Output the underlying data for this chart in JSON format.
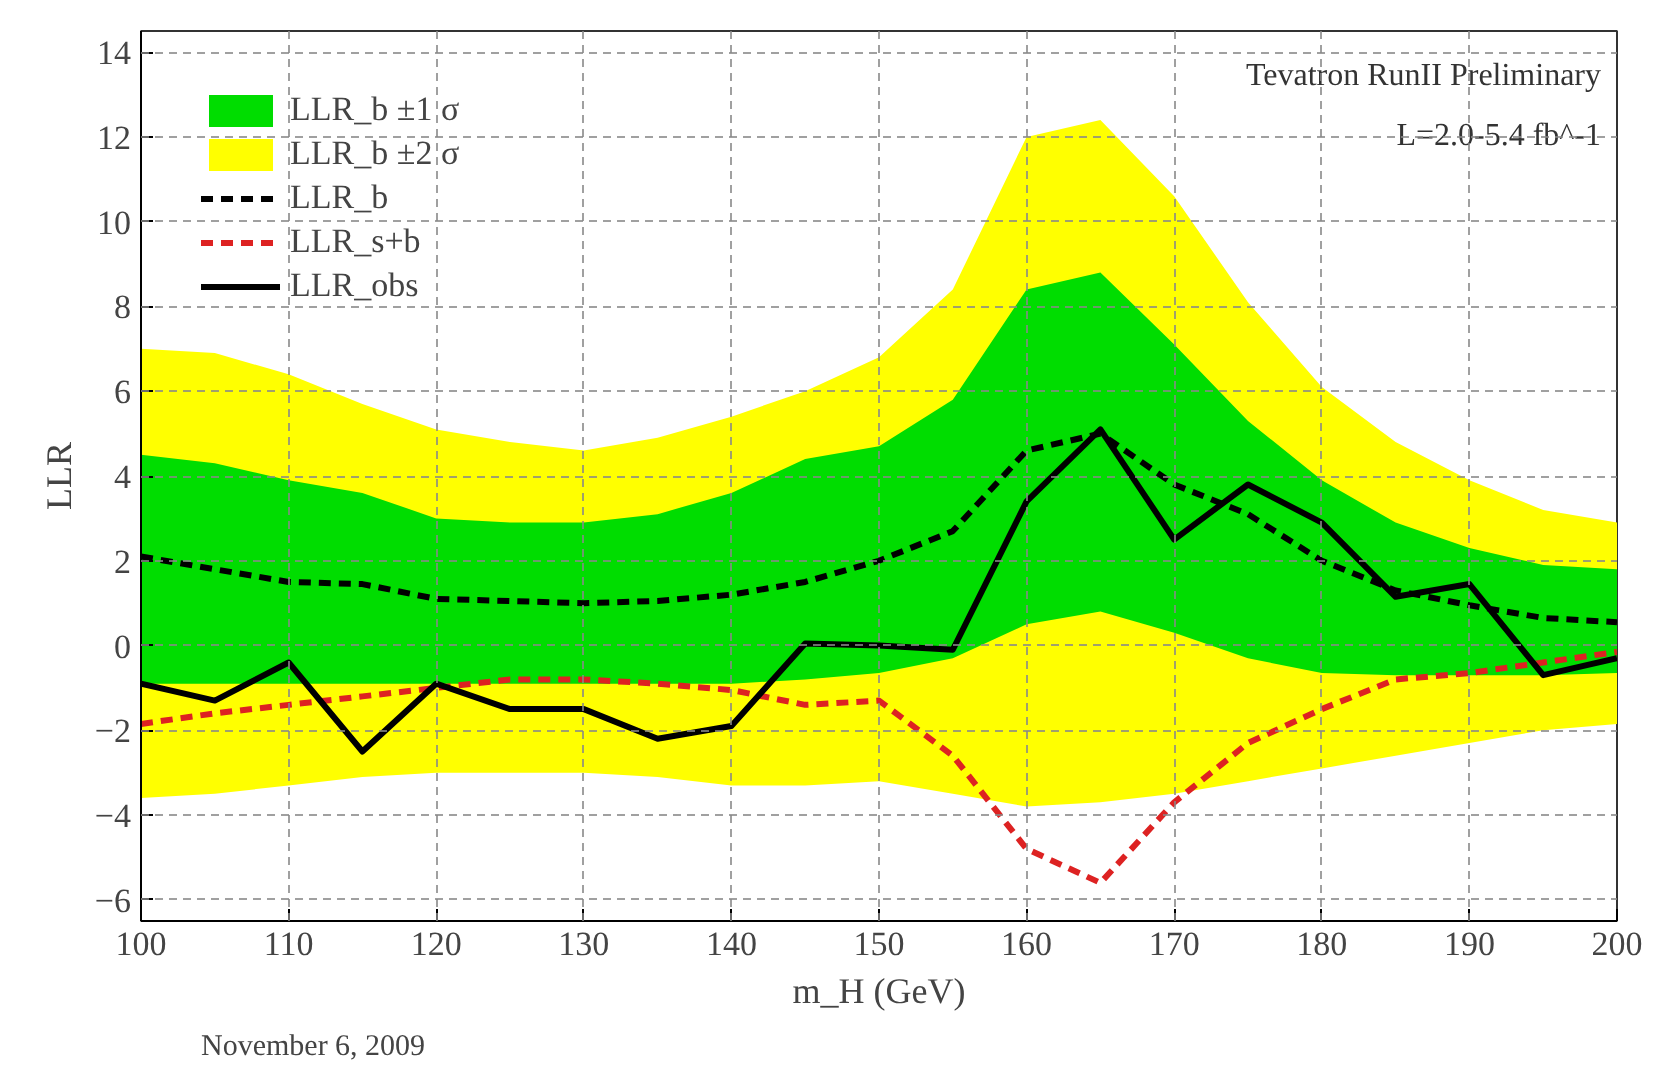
{
  "chart_data": {
    "type": "line",
    "xlabel": "m_H (GeV)",
    "ylabel": "LLR",
    "x": [
      100,
      105,
      110,
      115,
      120,
      125,
      130,
      135,
      140,
      145,
      150,
      155,
      160,
      165,
      170,
      175,
      180,
      185,
      190,
      195,
      200
    ],
    "series": [
      {
        "name": "LLR_b ±2 σ",
        "type": "area",
        "color": "#ffff00",
        "values": [
          null,
          null,
          null,
          null,
          null,
          null,
          null,
          null,
          null,
          null,
          null,
          null,
          null,
          null,
          null,
          null,
          null,
          null,
          null,
          null,
          null
        ],
        "lower": [
          -3.6,
          -3.5,
          -3.3,
          -3.1,
          -3.0,
          -3.0,
          -3.0,
          -3.1,
          -3.3,
          -3.3,
          -3.2,
          -3.5,
          -3.8,
          -3.7,
          -3.5,
          -3.2,
          -2.9,
          -2.6,
          -2.3,
          -2.0,
          -1.85
        ],
        "upper": [
          7.0,
          6.9,
          6.4,
          5.7,
          5.1,
          4.8,
          4.6,
          4.9,
          5.4,
          6.0,
          6.8,
          8.4,
          12.0,
          12.4,
          10.6,
          8.1,
          6.1,
          4.8,
          3.9,
          3.2,
          2.9
        ]
      },
      {
        "name": "LLR_b ±1 σ",
        "type": "area",
        "color": "#00dd00",
        "values": [
          null,
          null,
          null,
          null,
          null,
          null,
          null,
          null,
          null,
          null,
          null,
          null,
          null,
          null,
          null,
          null,
          null,
          null,
          null,
          null,
          null
        ],
        "lower": [
          -0.9,
          -0.9,
          -0.9,
          -0.9,
          -0.9,
          -0.9,
          -0.9,
          -0.9,
          -0.9,
          -0.8,
          -0.65,
          -0.3,
          0.5,
          0.8,
          0.3,
          -0.3,
          -0.65,
          -0.7,
          -0.7,
          -0.7,
          -0.65
        ],
        "upper": [
          4.5,
          4.3,
          3.9,
          3.6,
          3.0,
          2.9,
          2.9,
          3.1,
          3.6,
          4.4,
          4.7,
          5.8,
          8.4,
          8.8,
          7.1,
          5.3,
          3.9,
          2.9,
          2.3,
          1.9,
          1.8
        ]
      },
      {
        "name": "LLR_b",
        "color": "#000000",
        "line_style": "dashed",
        "values": [
          2.1,
          1.8,
          1.5,
          1.45,
          1.1,
          1.05,
          1.0,
          1.05,
          1.2,
          1.5,
          2.0,
          2.7,
          4.6,
          5.0,
          3.8,
          3.1,
          2.0,
          1.3,
          0.95,
          0.65,
          0.55
        ]
      },
      {
        "name": "LLR_s+b",
        "color": "#dd2222",
        "line_style": "dashed",
        "values": [
          -1.85,
          -1.6,
          -1.4,
          -1.2,
          -1.0,
          -0.8,
          -0.8,
          -0.9,
          -1.05,
          -1.4,
          -1.3,
          -2.6,
          -4.8,
          -5.6,
          -3.7,
          -2.3,
          -1.5,
          -0.8,
          -0.65,
          -0.4,
          -0.15
        ]
      },
      {
        "name": "LLR_obs",
        "color": "#000000",
        "line_style": "solid",
        "values": [
          -0.9,
          -1.3,
          -0.4,
          -2.5,
          -0.9,
          -1.5,
          -1.5,
          -2.2,
          -1.9,
          0.05,
          0.0,
          -0.1,
          3.4,
          5.1,
          2.5,
          3.8,
          2.9,
          1.15,
          1.45,
          -0.7,
          -0.3
        ]
      }
    ],
    "xlim": [
      100,
      200
    ],
    "ylim": [
      -6.5,
      14.5
    ],
    "xticks": [
      100,
      110,
      120,
      130,
      140,
      150,
      160,
      170,
      180,
      190,
      200
    ],
    "yticks": [
      -6,
      -4,
      -2,
      0,
      2,
      4,
      6,
      8,
      10,
      12,
      14
    ],
    "grid": true,
    "legend": "top left",
    "annotations": [
      "Tevatron RunII Preliminary",
      "L=2.0-5.4 fb^-1",
      "November 6, 2009"
    ]
  }
}
